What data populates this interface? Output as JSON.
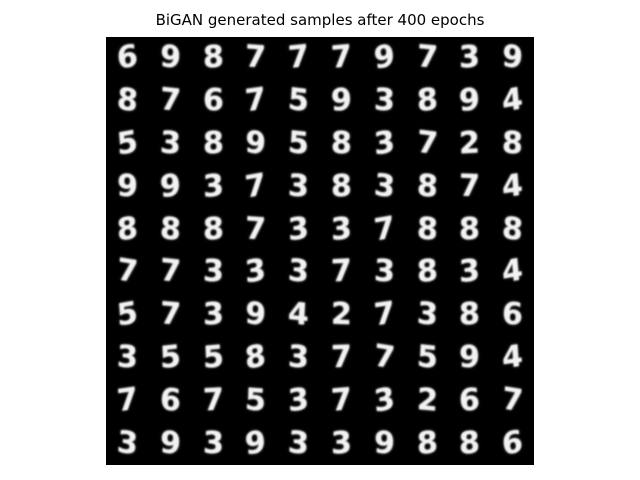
{
  "title": "BiGAN generated samples after 400 epochs",
  "colors": {
    "background": "#ffffff",
    "grid_background": "#000000",
    "digit": "#f2f2f2"
  },
  "grid": {
    "rows": 10,
    "cols": 10,
    "samples": [
      [
        "6",
        "9",
        "8",
        "7",
        "7",
        "7",
        "9",
        "7",
        "3",
        "9"
      ],
      [
        "8",
        "7",
        "6",
        "7",
        "5",
        "9",
        "3",
        "8",
        "9",
        "4"
      ],
      [
        "5",
        "3",
        "8",
        "9",
        "5",
        "8",
        "3",
        "7",
        "2",
        "8"
      ],
      [
        "9",
        "9",
        "3",
        "7",
        "3",
        "8",
        "3",
        "8",
        "7",
        "4"
      ],
      [
        "8",
        "8",
        "8",
        "7",
        "3",
        "3",
        "7",
        "8",
        "8",
        "8"
      ],
      [
        "7",
        "7",
        "3",
        "3",
        "3",
        "7",
        "3",
        "8",
        "3",
        "4"
      ],
      [
        "5",
        "7",
        "3",
        "9",
        "4",
        "2",
        "7",
        "3",
        "8",
        "6"
      ],
      [
        "3",
        "5",
        "5",
        "8",
        "3",
        "7",
        "7",
        "5",
        "9",
        "4"
      ],
      [
        "7",
        "6",
        "7",
        "5",
        "3",
        "7",
        "3",
        "2",
        "6",
        "7"
      ],
      [
        "3",
        "9",
        "3",
        "9",
        "3",
        "3",
        "9",
        "8",
        "8",
        "6"
      ]
    ]
  }
}
